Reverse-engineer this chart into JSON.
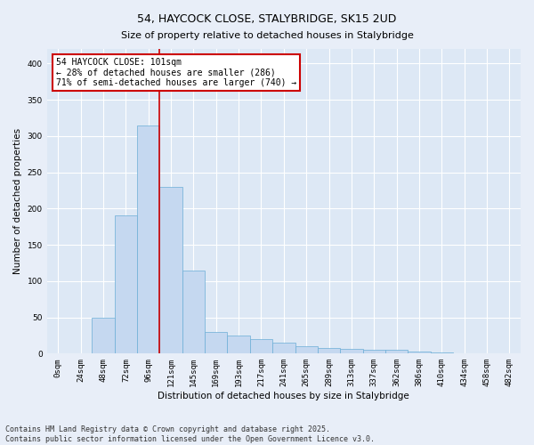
{
  "title": "54, HAYCOCK CLOSE, STALYBRIDGE, SK15 2UD",
  "subtitle": "Size of property relative to detached houses in Stalybridge",
  "xlabel": "Distribution of detached houses by size in Stalybridge",
  "ylabel": "Number of detached properties",
  "bar_labels": [
    "0sqm",
    "24sqm",
    "48sqm",
    "72sqm",
    "96sqm",
    "121sqm",
    "145sqm",
    "169sqm",
    "193sqm",
    "217sqm",
    "241sqm",
    "265sqm",
    "289sqm",
    "313sqm",
    "337sqm",
    "362sqm",
    "386sqm",
    "410sqm",
    "434sqm",
    "458sqm",
    "482sqm"
  ],
  "bar_values": [
    1,
    1,
    50,
    190,
    315,
    230,
    115,
    30,
    25,
    20,
    15,
    10,
    8,
    7,
    5,
    5,
    3,
    2,
    1,
    1,
    1
  ],
  "bar_color": "#c5d8f0",
  "bar_edgecolor": "#6baed6",
  "bg_color": "#dde8f5",
  "grid_color": "#ffffff",
  "fig_facecolor": "#e8eef8",
  "vline_color": "#cc0000",
  "annotation_text": "54 HAYCOCK CLOSE: 101sqm\n← 28% of detached houses are smaller (286)\n71% of semi-detached houses are larger (740) →",
  "annotation_box_color": "#cc0000",
  "footer_text": "Contains HM Land Registry data © Crown copyright and database right 2025.\nContains public sector information licensed under the Open Government Licence v3.0.",
  "ylim": [
    0,
    420
  ],
  "figsize": [
    6.0,
    5.0
  ],
  "dpi": 100,
  "title_fontsize": 9,
  "subtitle_fontsize": 8,
  "axis_label_fontsize": 7.5,
  "tick_fontsize": 6.5,
  "annotation_fontsize": 7,
  "footer_fontsize": 6
}
